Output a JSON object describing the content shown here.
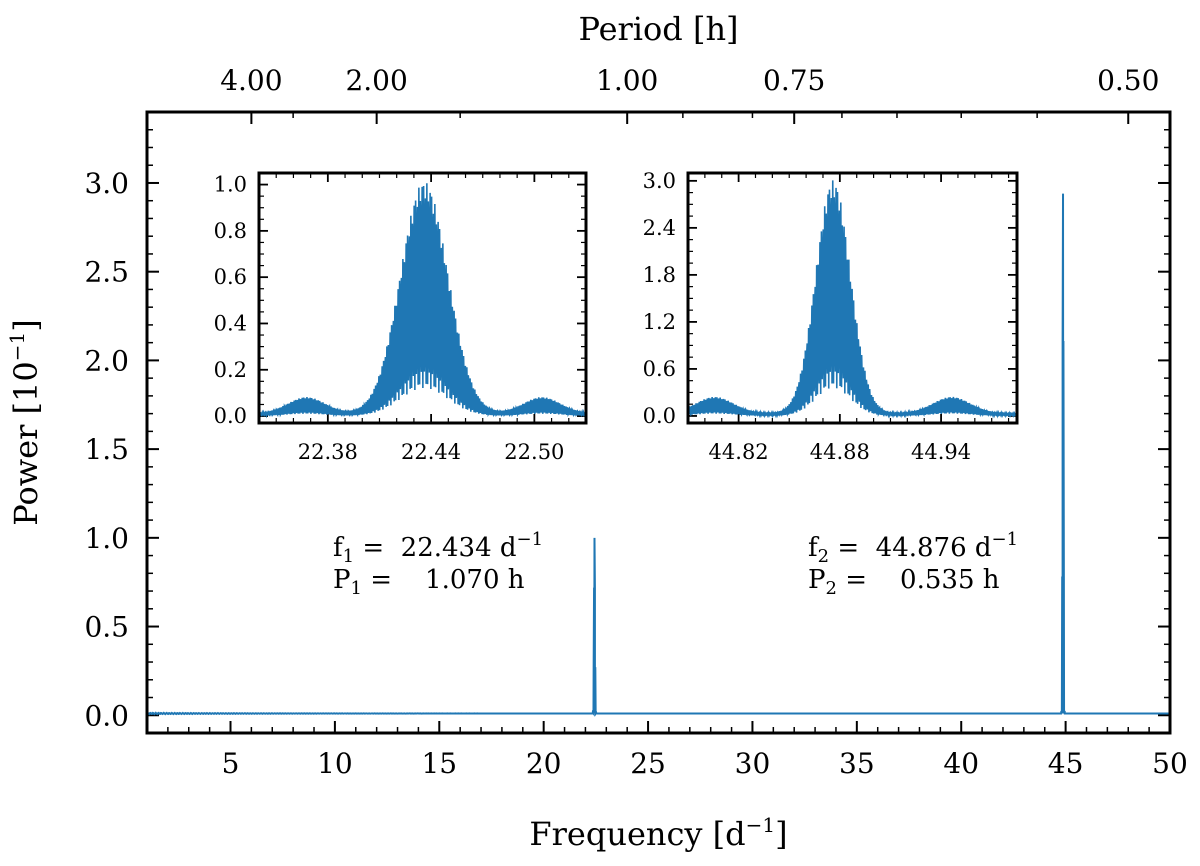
{
  "chart_data": {
    "type": "line",
    "color": "#1f77b4",
    "main": {
      "xlabel": "Frequency [d",
      "xlabel_exp": "−1",
      "xlabel_end": "]",
      "ylabel": "Power [10",
      "ylabel_exp": "−1",
      "ylabel_end": "]",
      "top_label": "Period [h]",
      "xlim": [
        1,
        50
      ],
      "ylim": [
        -0.1,
        3.4
      ],
      "x_ticks": [
        5,
        10,
        15,
        20,
        25,
        30,
        35,
        40,
        45,
        50
      ],
      "x_tick_labels": [
        "5",
        "10",
        "15",
        "20",
        "25",
        "30",
        "35",
        "40",
        "45",
        "50"
      ],
      "y_ticks": [
        0.0,
        0.5,
        1.0,
        1.5,
        2.0,
        2.5,
        3.0
      ],
      "y_tick_labels": [
        "0.0",
        "0.5",
        "1.0",
        "1.5",
        "2.0",
        "2.5",
        "3.0"
      ],
      "period_ticks_hours": [
        4.0,
        2.0,
        1.0,
        0.75,
        0.5
      ],
      "period_tick_labels": [
        "4.00",
        "2.00",
        "1.00",
        "0.75",
        "0.50"
      ],
      "peaks": [
        {
          "freq": 22.434,
          "power": 0.99
        },
        {
          "freq": 44.876,
          "power": 2.93
        }
      ],
      "baseline_power": 0.01
    },
    "annotations": [
      {
        "f_sym": "f",
        "f_sub": "1",
        "f_text": " =  22.434 d",
        "f_exp": "−1",
        "p_sym": "P",
        "p_sub": "1",
        "p_text": " =    1.070 h"
      },
      {
        "f_sym": "f",
        "f_sub": "2",
        "f_text": " =  44.876 d",
        "f_exp": "−1",
        "p_sym": "P",
        "p_sub": "2",
        "p_text": " =    0.535 h"
      }
    ],
    "insets": [
      {
        "name": "inset-f1",
        "xlim": [
          22.34,
          22.53
        ],
        "ylim": [
          -0.03,
          1.05
        ],
        "x_ticks": [
          22.38,
          22.44,
          22.5
        ],
        "x_tick_labels": [
          "22.38",
          "22.44",
          "22.50"
        ],
        "y_ticks": [
          0.0,
          0.2,
          0.4,
          0.6,
          0.8,
          1.0
        ],
        "y_tick_labels": [
          "0.0",
          "0.2",
          "0.4",
          "0.6",
          "0.8",
          "1.0"
        ],
        "peak_freq": 22.436,
        "peak_power": 1.0
      },
      {
        "name": "inset-f2",
        "xlim": [
          44.79,
          44.985
        ],
        "ylim": [
          -0.09,
          3.1
        ],
        "x_ticks": [
          44.82,
          44.88,
          44.94
        ],
        "x_tick_labels": [
          "44.82",
          "44.88",
          "44.94"
        ],
        "y_ticks": [
          0.0,
          0.6,
          1.2,
          1.8,
          2.4,
          3.0
        ],
        "y_tick_labels": [
          "0.0",
          "0.6",
          "1.2",
          "1.8",
          "2.4",
          "3.0"
        ],
        "peak_freq": 44.876,
        "peak_power": 2.97
      }
    ]
  }
}
